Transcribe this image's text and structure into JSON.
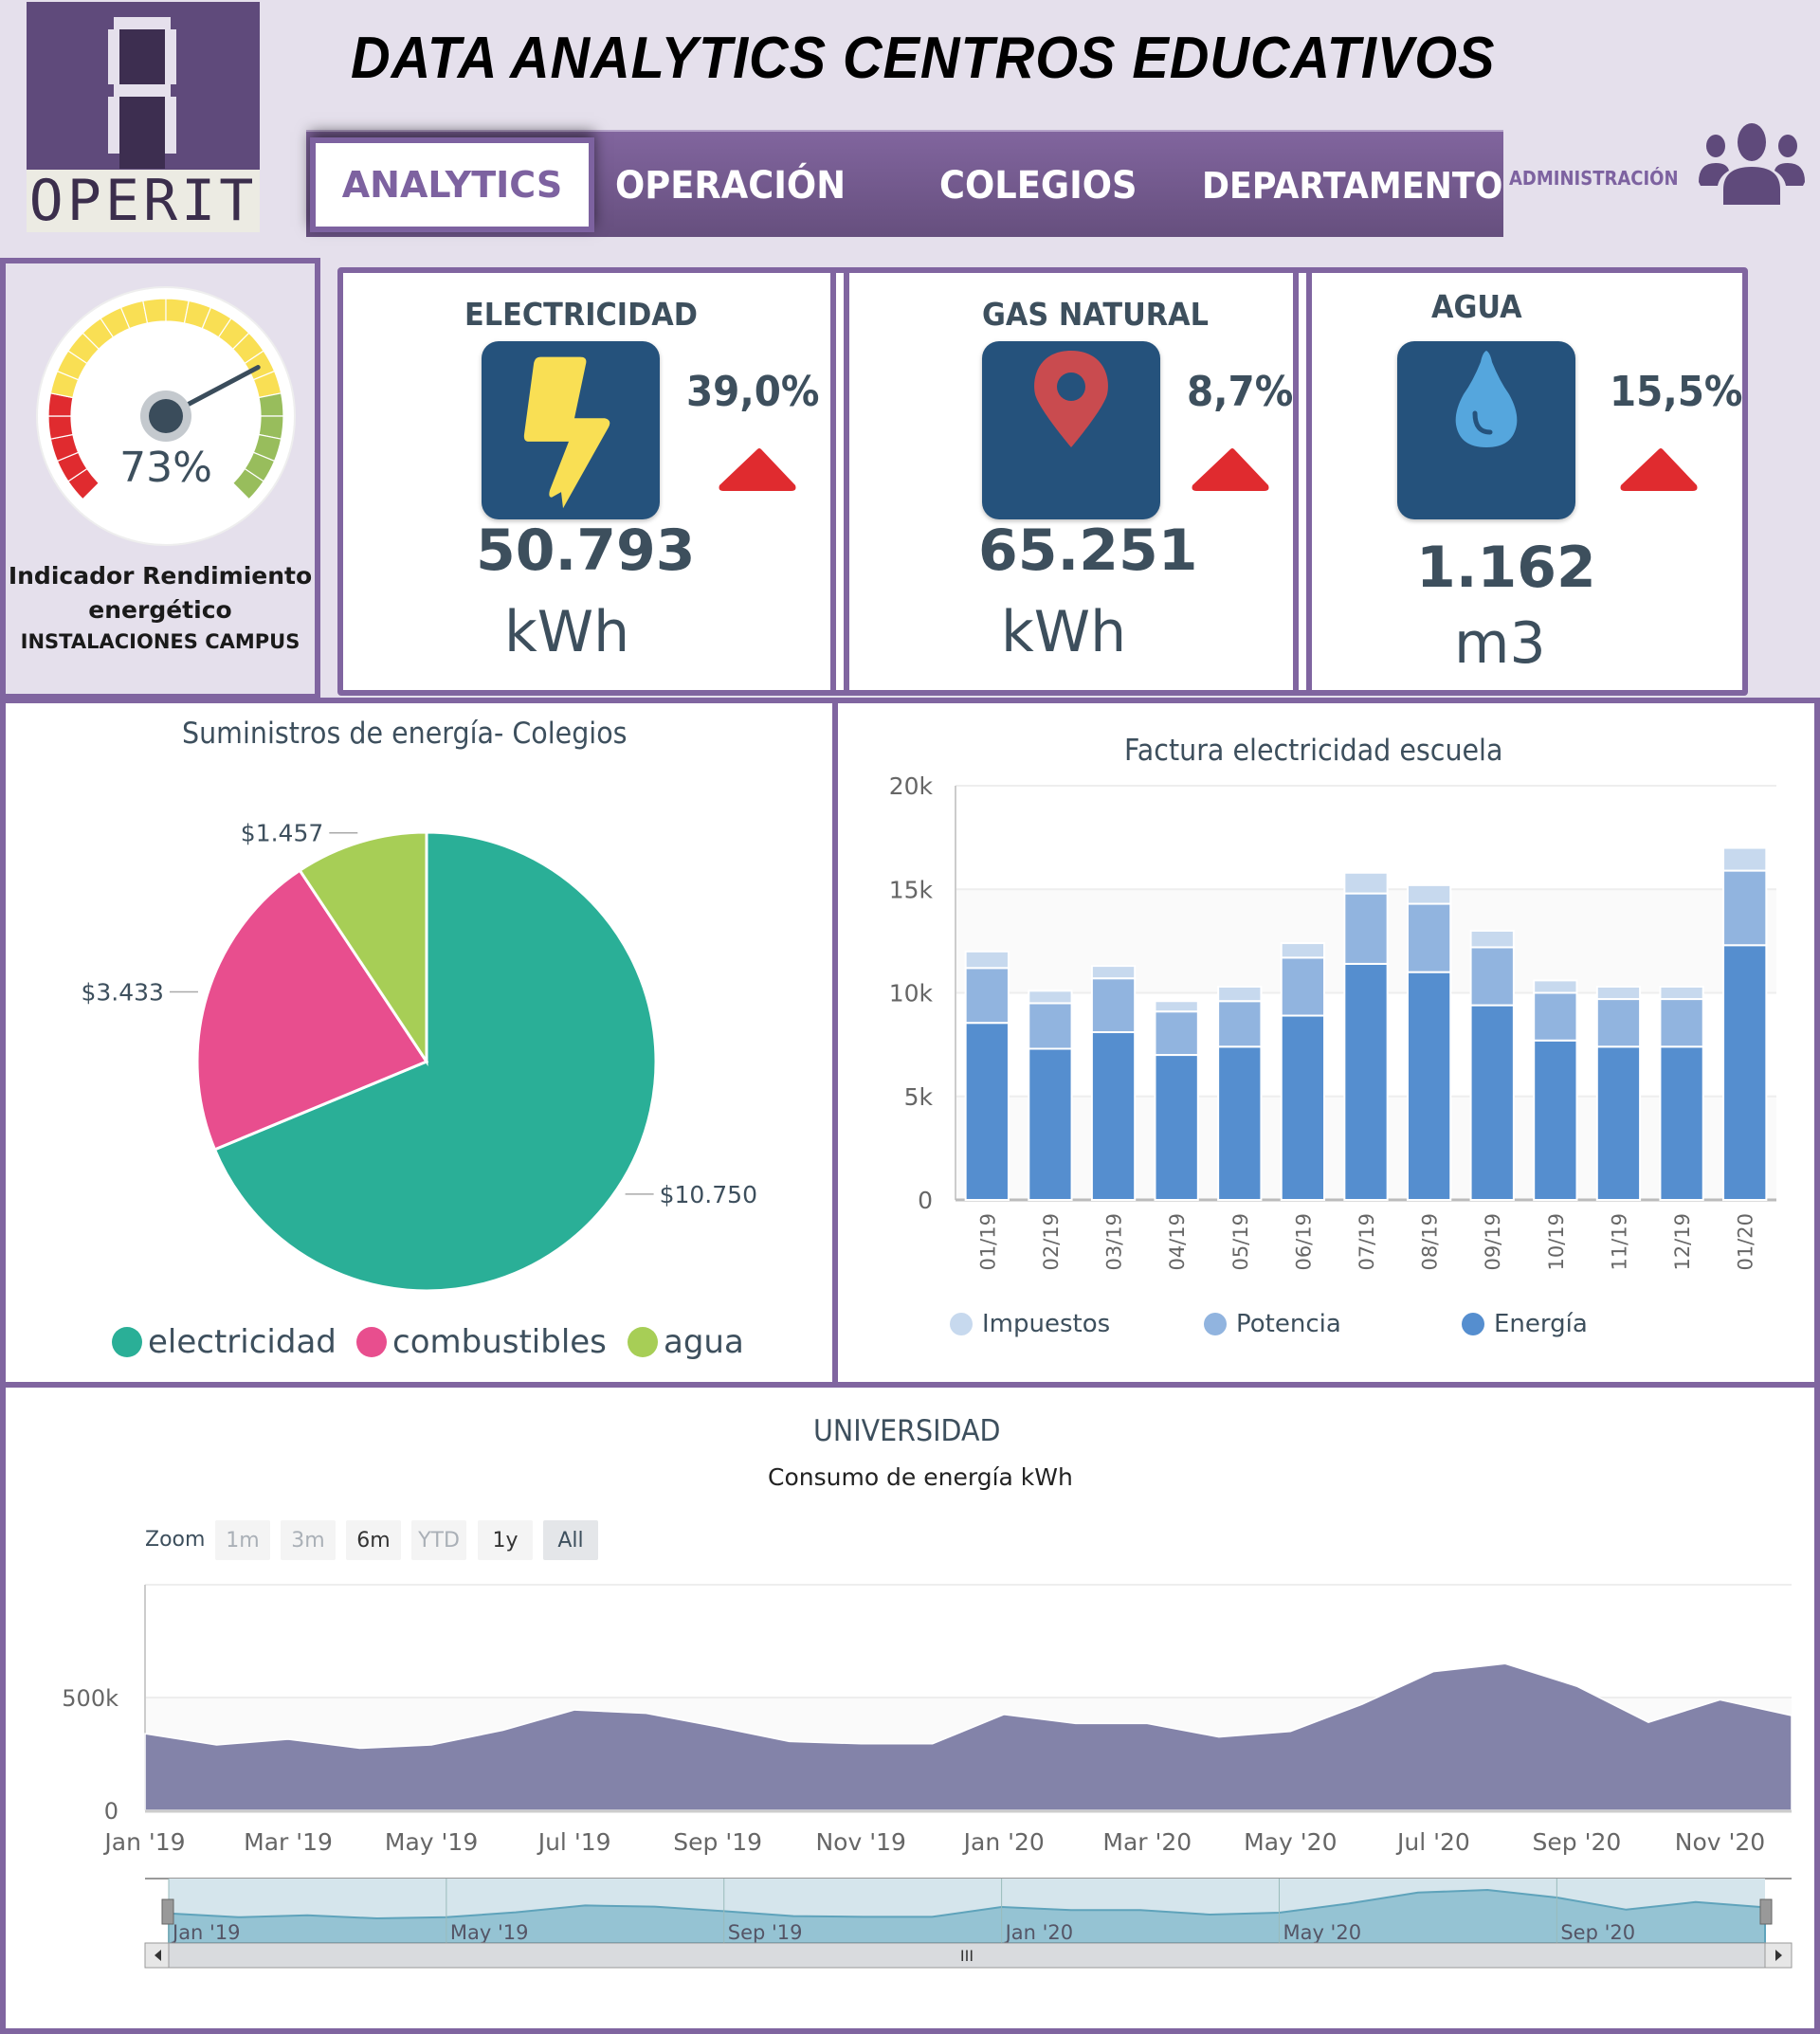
{
  "header": {
    "logo_text": "OPERIT",
    "title": "DATA ANALYTICS CENTROS EDUCATIVOS",
    "nav": [
      {
        "label": "ANALYTICS",
        "active": true
      },
      {
        "label": "OPERACIÓN",
        "active": false
      },
      {
        "label": "COLEGIOS",
        "active": false
      },
      {
        "label": "DEPARTAMENTO",
        "active": false
      }
    ],
    "admin_label": "ADMINISTRACIÓN",
    "admin_icon": "users-icon"
  },
  "gauge": {
    "value": 73,
    "value_label": "73%",
    "title_line1": "Indicador Rendimiento",
    "title_line2": "energético",
    "subtitle": "INSTALACIONES CAMPUS",
    "bands": {
      "red": "#e02b2f",
      "yellow": "#f9df54",
      "green": "#98bd5c"
    }
  },
  "kpis": [
    {
      "title": "ELECTRICIDAD",
      "icon": "lightning-icon",
      "pct": "39,0%",
      "trend": "up",
      "value": "50.793",
      "unit": "kWh"
    },
    {
      "title": "GAS NATURAL",
      "icon": "map-pin-icon",
      "pct": "8,7%",
      "trend": "up",
      "value": "65.251",
      "unit": "kWh"
    },
    {
      "title": "AGUA",
      "icon": "water-drop-icon",
      "pct": "15,5%",
      "trend": "up",
      "value": "1.162",
      "unit": "m3"
    }
  ],
  "colors": {
    "accent": "#8065a0",
    "trend_up": "#e02b2f",
    "icon_box": "#25527c"
  },
  "chart_data": [
    {
      "type": "pie",
      "title": "Suministros de energía- Colegios",
      "labels": [
        "electricidad",
        "combustibles",
        "agua"
      ],
      "values": [
        10750,
        3433,
        1457
      ],
      "data_labels": [
        "$10.750",
        "$3.433",
        "$1.457"
      ],
      "colors": [
        "#2aaf97",
        "#e84e8e",
        "#a7ce56"
      ],
      "legend": "bottom"
    },
    {
      "type": "bar",
      "stacked": true,
      "title": "Factura electricidad escuela",
      "categories": [
        "01/19",
        "02/19",
        "03/19",
        "04/19",
        "05/19",
        "06/19",
        "07/19",
        "08/19",
        "09/19",
        "10/19",
        "11/19",
        "12/19",
        "01/20"
      ],
      "series": [
        {
          "name": "Energía",
          "color": "#558ecf",
          "values": [
            8550,
            7300,
            8100,
            7000,
            7400,
            8900,
            11400,
            11000,
            9400,
            7700,
            7400,
            7400,
            12300
          ]
        },
        {
          "name": "Potencia",
          "color": "#91b4df",
          "values": [
            2650,
            2200,
            2600,
            2100,
            2200,
            2800,
            3400,
            3300,
            2800,
            2300,
            2300,
            2300,
            3600
          ]
        },
        {
          "name": "Impuestos",
          "color": "#c7d9ee",
          "values": [
            800,
            600,
            600,
            500,
            700,
            700,
            1000,
            900,
            800,
            600,
            600,
            600,
            1100
          ]
        }
      ],
      "legend_order": [
        "Impuestos",
        "Potencia",
        "Energía"
      ],
      "yticks": [
        "0",
        "5k",
        "10k",
        "15k",
        "20k"
      ],
      "ylim": [
        0,
        20000
      ],
      "legend": "bottom",
      "grid": true
    },
    {
      "type": "area",
      "title": "UNIVERSIDAD",
      "subtitle": "Consumo de energía kWh",
      "x": [
        "Jan '19",
        "Feb '19",
        "Mar '19",
        "Apr '19",
        "May '19",
        "Jun '19",
        "Jul '19",
        "Aug '19",
        "Sep '19",
        "Oct '19",
        "Nov '19",
        "Dec '19",
        "Jan '20",
        "Feb '20",
        "Mar '20",
        "Apr '20",
        "May '20",
        "Jun '20",
        "Jul '20",
        "Aug '20",
        "Sep '20",
        "Oct '20",
        "Nov '20",
        "Dec '20"
      ],
      "values": [
        340000,
        290000,
        315000,
        275000,
        290000,
        355000,
        445000,
        430000,
        370000,
        305000,
        295000,
        295000,
        425000,
        385000,
        385000,
        325000,
        350000,
        470000,
        615000,
        650000,
        550000,
        390000,
        490000,
        420000
      ],
      "color": "#8383a9",
      "xticks": [
        "Jan '19",
        "Mar '19",
        "May '19",
        "Jul '19",
        "Sep '19",
        "Nov '19",
        "Jan '20",
        "Mar '20",
        "May '20",
        "Jul '20",
        "Sep '20",
        "Nov '20"
      ],
      "yticks": [
        "0",
        "500k"
      ],
      "ylim": [
        0,
        1000000
      ],
      "zoom_label": "Zoom",
      "zoom_buttons": [
        {
          "label": "1m",
          "state": "disabled"
        },
        {
          "label": "3m",
          "state": "disabled"
        },
        {
          "label": "6m",
          "state": "enabled"
        },
        {
          "label": "YTD",
          "state": "disabled"
        },
        {
          "label": "1y",
          "state": "enabled"
        },
        {
          "label": "All",
          "state": "selected"
        }
      ],
      "navigator_ticks": [
        "Jan '19",
        "May '19",
        "Sep '19",
        "Jan '20",
        "May '20",
        "Sep '20"
      ],
      "scrollbar_grip": "III"
    }
  ]
}
